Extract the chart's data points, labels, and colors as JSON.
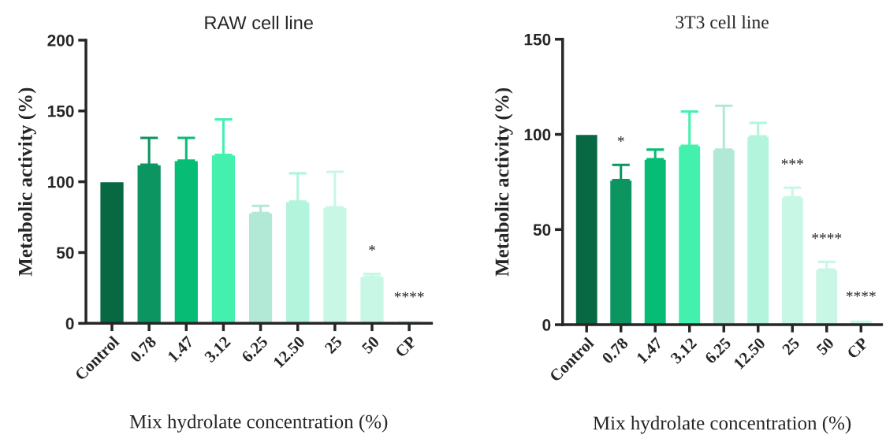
{
  "chart_data": [
    {
      "type": "bar",
      "title": "RAW cell line",
      "xlabel": "Mix hydrolate concentration (%)",
      "ylabel": "Metabolic activity (%)",
      "categories": [
        "Control",
        "0.78",
        "1.47",
        "3.12",
        "6.25",
        "12.50",
        "25",
        "50",
        "CP"
      ],
      "values": [
        100,
        112,
        115,
        119,
        78,
        86,
        82,
        33,
        2
      ],
      "errors": [
        null,
        [
          112,
          131
        ],
        [
          115,
          131
        ],
        [
          119,
          144
        ],
        [
          78,
          83
        ],
        [
          86,
          106
        ],
        [
          82,
          107
        ],
        [
          33,
          35
        ],
        null
      ],
      "colors": [
        "#076843",
        "#0c9560",
        "#07bd76",
        "#43f0ae",
        "#b2e8d6",
        "#b2f5dc",
        "#c9f7e5",
        "#c9f7e5",
        "#c9f7e5"
      ],
      "ylim": [
        0,
        200
      ],
      "yticks": [
        0,
        50,
        100,
        150,
        200
      ],
      "grid": false,
      "legend": false,
      "annotations": [
        {
          "text": "*",
          "x": "50",
          "y": 35
        },
        {
          "text": "****",
          "x": "CP",
          "y": 2
        }
      ]
    },
    {
      "type": "bar",
      "title": "3T3 cell line",
      "xlabel": "Mix hydrolate concentration (%)",
      "ylabel": "Metabolic activity (%)",
      "categories": [
        "Control",
        "0.78",
        "1.47",
        "3.12",
        "6.25",
        "12.50",
        "25",
        "50",
        "CP"
      ],
      "values": [
        100,
        76,
        87,
        94,
        92,
        99,
        67,
        29,
        2.5
      ],
      "errors": [
        null,
        [
          76,
          84
        ],
        [
          87,
          92
        ],
        [
          94,
          112
        ],
        [
          92,
          115
        ],
        [
          99,
          106
        ],
        [
          67,
          72
        ],
        [
          29,
          33
        ],
        null
      ],
      "colors": [
        "#076843",
        "#0c9560",
        "#07bd76",
        "#43f0ae",
        "#b2e8d6",
        "#b2f5dc",
        "#c9f7e5",
        "#c9f7e5",
        "#c9f7e5"
      ],
      "ylim": [
        0,
        150
      ],
      "yticks": [
        0,
        50,
        100,
        150
      ],
      "grid": false,
      "legend": false,
      "annotations": [
        {
          "text": "*",
          "x": "0.78",
          "y": 84
        },
        {
          "text": "***",
          "x": "25",
          "y": 72
        },
        {
          "text": "****",
          "x": "50",
          "y": 33
        },
        {
          "text": "****",
          "x": "CP",
          "y": 2.5
        }
      ]
    }
  ]
}
